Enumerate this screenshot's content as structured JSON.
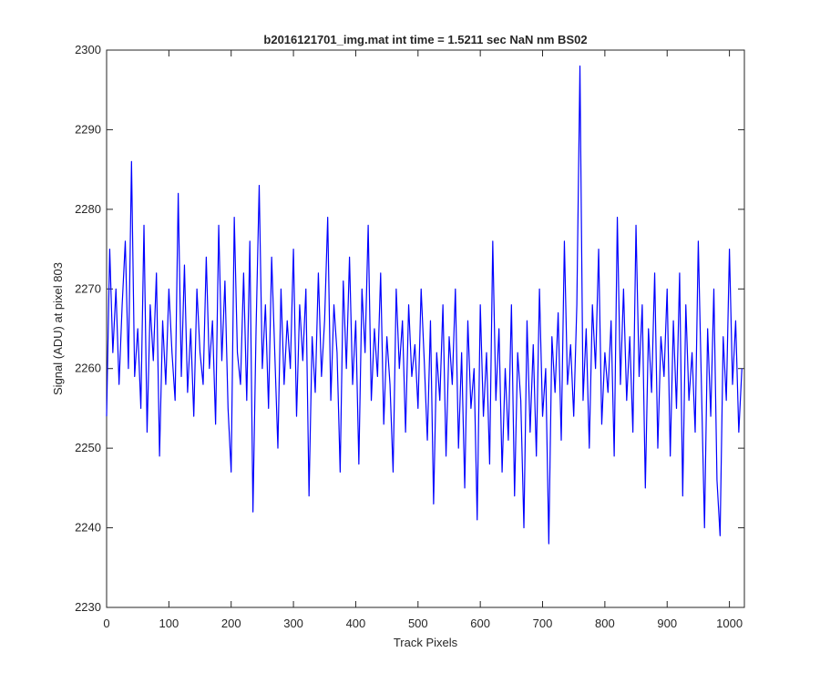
{
  "chart_data": {
    "type": "line",
    "title": "b2016121701_img.mat int time = 1.5211 sec  NaN nm BS02",
    "x_label": "Track Pixels",
    "y_label": "Signal (ADU) at pixel 803",
    "xlim": [
      0,
      1024
    ],
    "ylim": [
      2230,
      2300
    ],
    "xticks": [
      0,
      100,
      200,
      300,
      400,
      500,
      600,
      700,
      800,
      900,
      1000
    ],
    "yticks": [
      2230,
      2240,
      2250,
      2260,
      2270,
      2280,
      2290,
      2300
    ],
    "grid": false,
    "x": [
      0,
      5,
      10,
      15,
      20,
      25,
      30,
      35,
      40,
      45,
      50,
      55,
      60,
      65,
      70,
      75,
      80,
      85,
      90,
      95,
      100,
      105,
      110,
      115,
      120,
      125,
      130,
      135,
      140,
      145,
      150,
      155,
      160,
      165,
      170,
      175,
      180,
      185,
      190,
      195,
      200,
      205,
      210,
      215,
      220,
      225,
      230,
      235,
      240,
      245,
      250,
      255,
      260,
      265,
      270,
      275,
      280,
      285,
      290,
      295,
      300,
      305,
      310,
      315,
      320,
      325,
      330,
      335,
      340,
      345,
      350,
      355,
      360,
      365,
      370,
      375,
      380,
      385,
      390,
      395,
      400,
      405,
      410,
      415,
      420,
      425,
      430,
      435,
      440,
      445,
      450,
      455,
      460,
      465,
      470,
      475,
      480,
      485,
      490,
      495,
      500,
      505,
      510,
      515,
      520,
      525,
      530,
      535,
      540,
      545,
      550,
      555,
      560,
      565,
      570,
      575,
      580,
      585,
      590,
      595,
      600,
      605,
      610,
      615,
      620,
      625,
      630,
      635,
      640,
      645,
      650,
      655,
      660,
      665,
      670,
      675,
      680,
      685,
      690,
      695,
      700,
      705,
      710,
      715,
      720,
      725,
      730,
      735,
      740,
      745,
      750,
      755,
      760,
      765,
      770,
      775,
      780,
      785,
      790,
      795,
      800,
      805,
      810,
      815,
      820,
      825,
      830,
      835,
      840,
      845,
      850,
      855,
      860,
      865,
      870,
      875,
      880,
      885,
      890,
      895,
      900,
      905,
      910,
      915,
      920,
      925,
      930,
      935,
      940,
      945,
      950,
      955,
      960,
      965,
      970,
      975,
      980,
      985,
      990,
      995,
      1000,
      1005,
      1010,
      1015,
      1020
    ],
    "series": [
      {
        "name": "signal",
        "color": "#0000ff",
        "values": [
          2254,
          2275,
          2262,
          2270,
          2258,
          2268,
          2276,
          2260,
          2286,
          2259,
          2265,
          2255,
          2278,
          2252,
          2268,
          2261,
          2272,
          2249,
          2266,
          2258,
          2270,
          2262,
          2256,
          2282,
          2259,
          2273,
          2257,
          2265,
          2254,
          2270,
          2262,
          2258,
          2274,
          2260,
          2266,
          2253,
          2278,
          2261,
          2271,
          2255,
          2247,
          2279,
          2262,
          2258,
          2272,
          2256,
          2276,
          2242,
          2265,
          2283,
          2260,
          2268,
          2255,
          2274,
          2262,
          2250,
          2270,
          2258,
          2266,
          2260,
          2275,
          2254,
          2268,
          2261,
          2270,
          2244,
          2264,
          2257,
          2272,
          2259,
          2266,
          2279,
          2256,
          2268,
          2262,
          2247,
          2271,
          2260,
          2274,
          2258,
          2266,
          2248,
          2270,
          2262,
          2278,
          2256,
          2265,
          2259,
          2272,
          2253,
          2264,
          2258,
          2247,
          2270,
          2260,
          2266,
          2252,
          2268,
          2259,
          2263,
          2255,
          2270,
          2261,
          2251,
          2266,
          2243,
          2262,
          2256,
          2268,
          2249,
          2264,
          2258,
          2270,
          2250,
          2262,
          2245,
          2266,
          2255,
          2260,
          2241,
          2268,
          2254,
          2262,
          2248,
          2276,
          2256,
          2265,
          2247,
          2260,
          2251,
          2268,
          2244,
          2262,
          2256,
          2240,
          2266,
          2252,
          2263,
          2249,
          2270,
          2254,
          2260,
          2238,
          2264,
          2257,
          2267,
          2251,
          2276,
          2258,
          2263,
          2254,
          2268,
          2298,
          2256,
          2265,
          2250,
          2268,
          2260,
          2275,
          2253,
          2262,
          2257,
          2266,
          2249,
          2279,
          2258,
          2270,
          2256,
          2264,
          2252,
          2278,
          2259,
          2268,
          2245,
          2265,
          2257,
          2272,
          2250,
          2264,
          2259,
          2270,
          2249,
          2266,
          2255,
          2272,
          2244,
          2268,
          2256,
          2262,
          2252,
          2276,
          2258,
          2240,
          2265,
          2254,
          2270,
          2246,
          2239,
          2264,
          2256,
          2275,
          2258,
          2266,
          2252,
          2260
        ]
      }
    ]
  }
}
